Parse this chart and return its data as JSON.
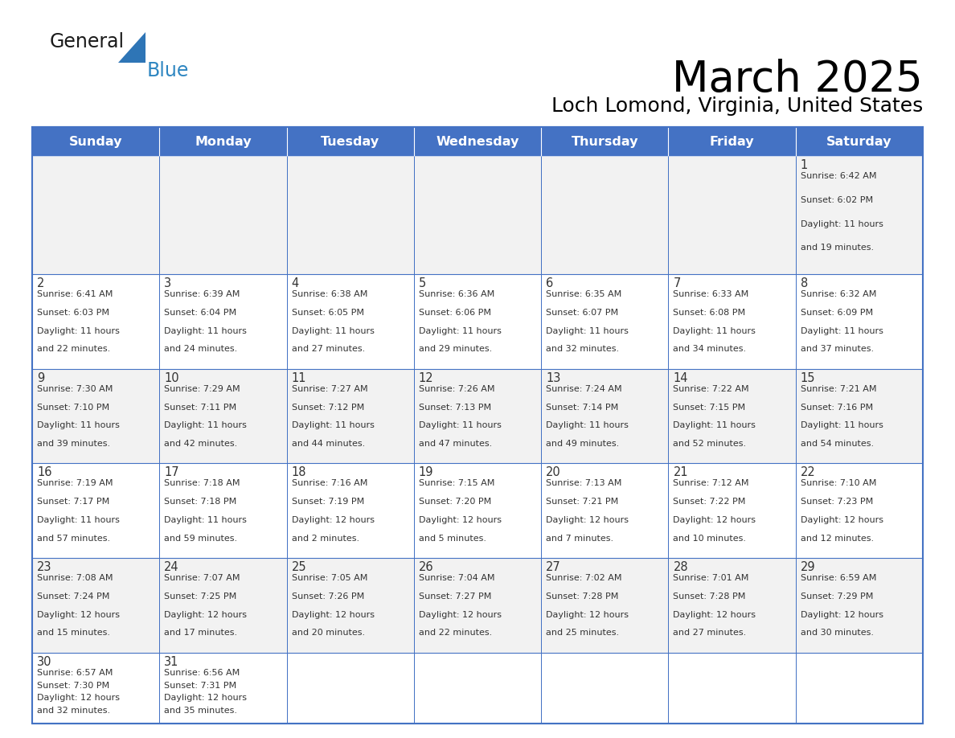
{
  "title": "March 2025",
  "subtitle": "Loch Lomond, Virginia, United States",
  "header_bg": "#4472C4",
  "header_text_color": "#FFFFFF",
  "days_of_week": [
    "Sunday",
    "Monday",
    "Tuesday",
    "Wednesday",
    "Thursday",
    "Friday",
    "Saturday"
  ],
  "row_colors": [
    "#F2F2F2",
    "#FFFFFF"
  ],
  "border_color": "#4472C4",
  "text_color": "#333333",
  "day_num_color": "#333333",
  "calendar": [
    [
      null,
      null,
      null,
      null,
      null,
      null,
      {
        "day": 1,
        "sunrise": "6:42 AM",
        "sunset": "6:02 PM",
        "daylight": "11 hours and 19 minutes."
      }
    ],
    [
      {
        "day": 2,
        "sunrise": "6:41 AM",
        "sunset": "6:03 PM",
        "daylight": "11 hours and 22 minutes."
      },
      {
        "day": 3,
        "sunrise": "6:39 AM",
        "sunset": "6:04 PM",
        "daylight": "11 hours and 24 minutes."
      },
      {
        "day": 4,
        "sunrise": "6:38 AM",
        "sunset": "6:05 PM",
        "daylight": "11 hours and 27 minutes."
      },
      {
        "day": 5,
        "sunrise": "6:36 AM",
        "sunset": "6:06 PM",
        "daylight": "11 hours and 29 minutes."
      },
      {
        "day": 6,
        "sunrise": "6:35 AM",
        "sunset": "6:07 PM",
        "daylight": "11 hours and 32 minutes."
      },
      {
        "day": 7,
        "sunrise": "6:33 AM",
        "sunset": "6:08 PM",
        "daylight": "11 hours and 34 minutes."
      },
      {
        "day": 8,
        "sunrise": "6:32 AM",
        "sunset": "6:09 PM",
        "daylight": "11 hours and 37 minutes."
      }
    ],
    [
      {
        "day": 9,
        "sunrise": "7:30 AM",
        "sunset": "7:10 PM",
        "daylight": "11 hours and 39 minutes."
      },
      {
        "day": 10,
        "sunrise": "7:29 AM",
        "sunset": "7:11 PM",
        "daylight": "11 hours and 42 minutes."
      },
      {
        "day": 11,
        "sunrise": "7:27 AM",
        "sunset": "7:12 PM",
        "daylight": "11 hours and 44 minutes."
      },
      {
        "day": 12,
        "sunrise": "7:26 AM",
        "sunset": "7:13 PM",
        "daylight": "11 hours and 47 minutes."
      },
      {
        "day": 13,
        "sunrise": "7:24 AM",
        "sunset": "7:14 PM",
        "daylight": "11 hours and 49 minutes."
      },
      {
        "day": 14,
        "sunrise": "7:22 AM",
        "sunset": "7:15 PM",
        "daylight": "11 hours and 52 minutes."
      },
      {
        "day": 15,
        "sunrise": "7:21 AM",
        "sunset": "7:16 PM",
        "daylight": "11 hours and 54 minutes."
      }
    ],
    [
      {
        "day": 16,
        "sunrise": "7:19 AM",
        "sunset": "7:17 PM",
        "daylight": "11 hours and 57 minutes."
      },
      {
        "day": 17,
        "sunrise": "7:18 AM",
        "sunset": "7:18 PM",
        "daylight": "11 hours and 59 minutes."
      },
      {
        "day": 18,
        "sunrise": "7:16 AM",
        "sunset": "7:19 PM",
        "daylight": "12 hours and 2 minutes."
      },
      {
        "day": 19,
        "sunrise": "7:15 AM",
        "sunset": "7:20 PM",
        "daylight": "12 hours and 5 minutes."
      },
      {
        "day": 20,
        "sunrise": "7:13 AM",
        "sunset": "7:21 PM",
        "daylight": "12 hours and 7 minutes."
      },
      {
        "day": 21,
        "sunrise": "7:12 AM",
        "sunset": "7:22 PM",
        "daylight": "12 hours and 10 minutes."
      },
      {
        "day": 22,
        "sunrise": "7:10 AM",
        "sunset": "7:23 PM",
        "daylight": "12 hours and 12 minutes."
      }
    ],
    [
      {
        "day": 23,
        "sunrise": "7:08 AM",
        "sunset": "7:24 PM",
        "daylight": "12 hours and 15 minutes."
      },
      {
        "day": 24,
        "sunrise": "7:07 AM",
        "sunset": "7:25 PM",
        "daylight": "12 hours and 17 minutes."
      },
      {
        "day": 25,
        "sunrise": "7:05 AM",
        "sunset": "7:26 PM",
        "daylight": "12 hours and 20 minutes."
      },
      {
        "day": 26,
        "sunrise": "7:04 AM",
        "sunset": "7:27 PM",
        "daylight": "12 hours and 22 minutes."
      },
      {
        "day": 27,
        "sunrise": "7:02 AM",
        "sunset": "7:28 PM",
        "daylight": "12 hours and 25 minutes."
      },
      {
        "day": 28,
        "sunrise": "7:01 AM",
        "sunset": "7:28 PM",
        "daylight": "12 hours and 27 minutes."
      },
      {
        "day": 29,
        "sunrise": "6:59 AM",
        "sunset": "7:29 PM",
        "daylight": "12 hours and 30 minutes."
      }
    ],
    [
      {
        "day": 30,
        "sunrise": "6:57 AM",
        "sunset": "7:30 PM",
        "daylight": "12 hours and 32 minutes."
      },
      {
        "day": 31,
        "sunrise": "6:56 AM",
        "sunset": "7:31 PM",
        "daylight": "12 hours and 35 minutes."
      },
      null,
      null,
      null,
      null,
      null
    ]
  ],
  "logo_color_general": "#1a1a1a",
  "logo_color_blue": "#2e86c1",
  "logo_triangle_color": "#2e75b6"
}
